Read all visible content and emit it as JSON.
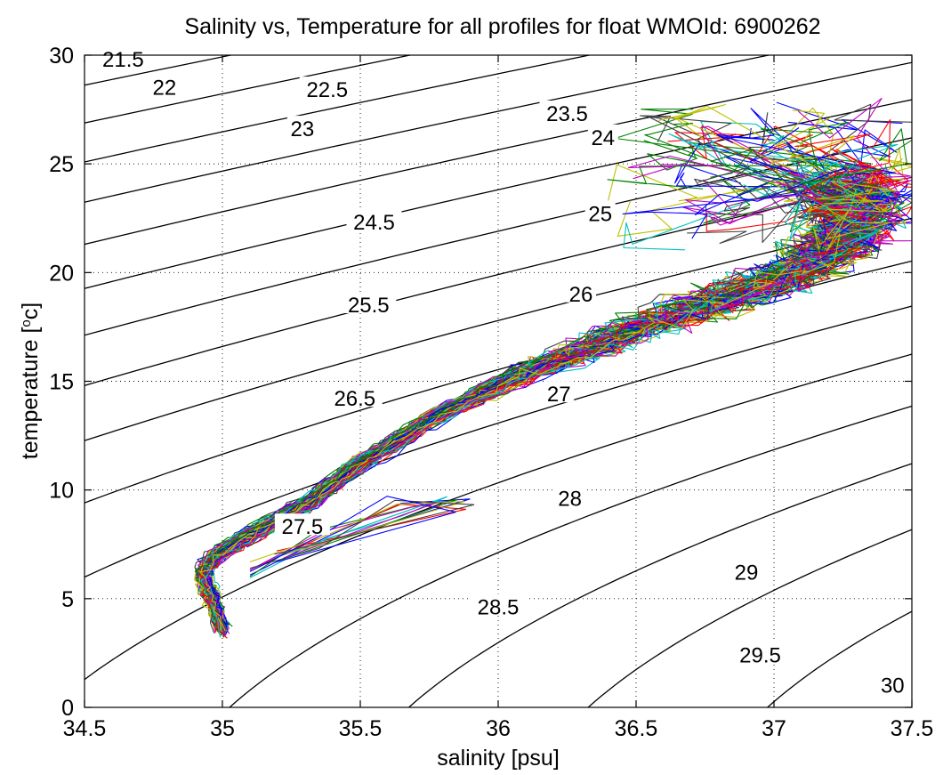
{
  "chart_data": {
    "type": "line",
    "title": "Salinity vs, Temperature for all profiles for float WMOId: 6900262",
    "xlabel": "salinity [psu]",
    "ylabel_main": "temperature [",
    "ylabel_sup": "o",
    "ylabel_tail": "c]",
    "xlim": [
      34.5,
      37.5
    ],
    "ylim": [
      0,
      30
    ],
    "x_ticks": [
      "34.5",
      "35",
      "35.5",
      "36",
      "36.5",
      "37",
      "37.5"
    ],
    "y_ticks": [
      "0",
      "5",
      "10",
      "15",
      "20",
      "25",
      "30"
    ],
    "grid": true,
    "grid_style": "dotted",
    "density_contours": {
      "color": "#000000",
      "levels": [
        {
          "sigma": 21.5,
          "label": "21.5",
          "label_s": 34.64,
          "label_t": 29.8
        },
        {
          "sigma": 22.0,
          "label": "22",
          "label_s": 34.79,
          "label_t": 28.5
        },
        {
          "sigma": 22.5,
          "label": "22.5",
          "label_s": 35.38,
          "label_t": 28.4
        },
        {
          "sigma": 23.0,
          "label": "23",
          "label_s": 35.29,
          "label_t": 26.6
        },
        {
          "sigma": 23.5,
          "label": "23.5",
          "label_s": 36.25,
          "label_t": 27.3
        },
        {
          "sigma": 24.0,
          "label": "24",
          "label_s": 36.38,
          "label_t": 26.2
        },
        {
          "sigma": 24.5,
          "label": "24.5",
          "label_s": 35.55,
          "label_t": 22.3
        },
        {
          "sigma": 25.0,
          "label": "25",
          "label_s": 36.37,
          "label_t": 22.7
        },
        {
          "sigma": 25.5,
          "label": "25.5",
          "label_s": 35.53,
          "label_t": 18.5
        },
        {
          "sigma": 26.0,
          "label": "26",
          "label_s": 36.3,
          "label_t": 19.0
        },
        {
          "sigma": 26.5,
          "label": "26.5",
          "label_s": 35.48,
          "label_t": 14.2
        },
        {
          "sigma": 27.0,
          "label": "27",
          "label_s": 36.22,
          "label_t": 14.4
        },
        {
          "sigma": 27.5,
          "label": "27.5",
          "label_s": 35.29,
          "label_t": 8.3
        },
        {
          "sigma": 28.0,
          "label": "28",
          "label_s": 36.26,
          "label_t": 9.6
        },
        {
          "sigma": 28.5,
          "label": "28.5",
          "label_s": 36.0,
          "label_t": 4.6
        },
        {
          "sigma": 29.0,
          "label": "29",
          "label_s": 36.9,
          "label_t": 6.2
        },
        {
          "sigma": 29.5,
          "label": "29.5",
          "label_s": 36.95,
          "label_t": 2.4
        },
        {
          "sigma": 30.0,
          "label": "30",
          "label_s": 37.43,
          "label_t": 1.0
        }
      ]
    },
    "profiles": {
      "count": 90,
      "colors": [
        "#0000ff",
        "#008000",
        "#ff0000",
        "#00bfbf",
        "#bf00bf",
        "#bfbf00",
        "#404040"
      ],
      "reference_curve": [
        {
          "s": 35.0,
          "t": 3.6
        },
        {
          "s": 34.97,
          "t": 4.8
        },
        {
          "s": 34.94,
          "t": 5.6
        },
        {
          "s": 34.93,
          "t": 6.3
        },
        {
          "s": 34.98,
          "t": 7.0
        },
        {
          "s": 35.08,
          "t": 7.8
        },
        {
          "s": 35.2,
          "t": 8.6
        },
        {
          "s": 35.33,
          "t": 9.6
        },
        {
          "s": 35.45,
          "t": 10.8
        },
        {
          "s": 35.6,
          "t": 12.0
        },
        {
          "s": 35.75,
          "t": 13.2
        },
        {
          "s": 35.92,
          "t": 14.3
        },
        {
          "s": 36.1,
          "t": 15.4
        },
        {
          "s": 36.3,
          "t": 16.4
        },
        {
          "s": 36.5,
          "t": 17.4
        },
        {
          "s": 36.7,
          "t": 18.3
        },
        {
          "s": 36.9,
          "t": 19.2
        },
        {
          "s": 37.1,
          "t": 20.2
        },
        {
          "s": 37.25,
          "t": 21.5
        },
        {
          "s": 37.3,
          "t": 22.8
        },
        {
          "s": 37.25,
          "t": 24.0
        }
      ],
      "intrusion_curve": [
        {
          "s": 35.1,
          "t": 6.8
        },
        {
          "s": 35.4,
          "t": 8.3
        },
        {
          "s": 35.7,
          "t": 9.6
        },
        {
          "s": 35.92,
          "t": 10.0
        }
      ]
    }
  }
}
